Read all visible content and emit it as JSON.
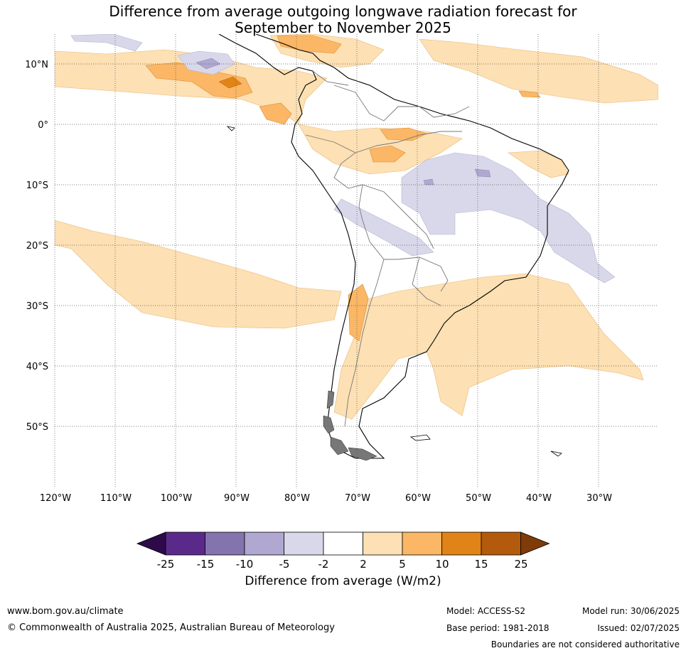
{
  "title": {
    "line1": "Difference from average outgoing longwave radiation forecast for",
    "line2": "September to November 2025"
  },
  "map": {
    "region": "South America",
    "lat_labels": [
      "10°N",
      "0°",
      "10°S",
      "20°S",
      "30°S",
      "40°S",
      "50°S"
    ],
    "lon_labels": [
      "120°W",
      "110°W",
      "100°W",
      "90°W",
      "80°W",
      "70°W",
      "60°W",
      "50°W",
      "40°W",
      "30°W"
    ]
  },
  "colorbar": {
    "ticks": [
      "-25",
      "-15",
      "-10",
      "-5",
      "-2",
      "2",
      "5",
      "10",
      "15",
      "25"
    ],
    "colors": [
      "#2d0a4a",
      "#5a2a8a",
      "#8374ad",
      "#b0a8d0",
      "#d8d8ea",
      "#ffffff",
      "#fde0b3",
      "#fbb765",
      "#e08418",
      "#b45a0c",
      "#7f3b08"
    ],
    "label": "Difference from average (W/m2)"
  },
  "footer": {
    "url": "www.bom.gov.au/climate",
    "copyright": "© Commonwealth of Australia 2025, Australian Bureau of Meteorology",
    "model": "Model: ACCESS-S2",
    "base_period": "Base period: 1981-2018",
    "model_run": "Model run: 30/06/2025",
    "issued": "Issued: 02/07/2025",
    "disclaimer": "Boundaries are not considered authoritative"
  }
}
